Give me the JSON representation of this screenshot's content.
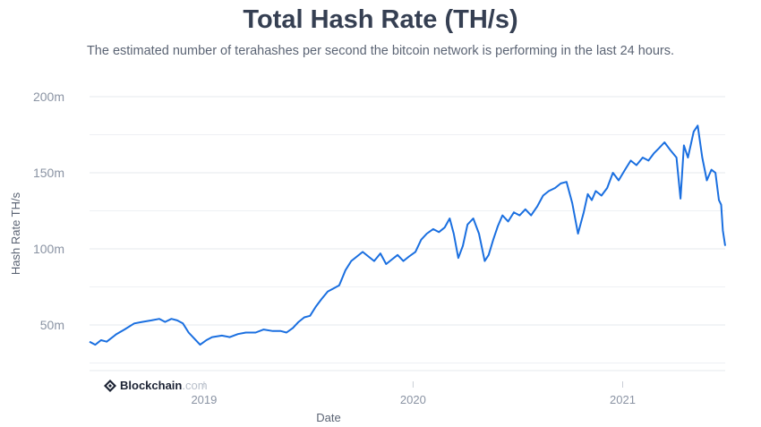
{
  "chart_data": {
    "type": "line",
    "title": "Total Hash Rate (TH/s)",
    "subtitle": "The estimated number of terahashes per second the bitcoin network is performing in the last 24 hours.",
    "xlabel": "Date",
    "ylabel": "Hash Rate TH/s",
    "x_tick_labels": [
      "2019",
      "2020",
      "2021"
    ],
    "y_tick_labels": [
      "50m",
      "100m",
      "150m",
      "200m"
    ],
    "y_ticks": [
      50000000,
      100000000,
      150000000,
      200000000
    ],
    "ylim": [
      20000000,
      200000000
    ],
    "xlim": [
      "2018-06-15",
      "2021-06-29"
    ],
    "grid": "horizontal",
    "line_color": "#1a6fe0",
    "series": [
      {
        "x": [
          "2018-06-15",
          "2018-06-25",
          "2018-07-05",
          "2018-07-15",
          "2018-08-01",
          "2018-08-15",
          "2018-09-01",
          "2018-09-15",
          "2018-10-01",
          "2018-10-15",
          "2018-10-25",
          "2018-11-05",
          "2018-11-15",
          "2018-11-25",
          "2018-12-05",
          "2018-12-15",
          "2018-12-25",
          "2019-01-05",
          "2019-01-15",
          "2019-02-01",
          "2019-02-15",
          "2019-03-01",
          "2019-03-15",
          "2019-04-01",
          "2019-04-15",
          "2019-05-01",
          "2019-05-15",
          "2019-05-25",
          "2019-06-05",
          "2019-06-15",
          "2019-06-25",
          "2019-07-05",
          "2019-07-15",
          "2019-07-25",
          "2019-08-05",
          "2019-08-15",
          "2019-08-25",
          "2019-09-05",
          "2019-09-15",
          "2019-09-25",
          "2019-10-05",
          "2019-10-15",
          "2019-10-25",
          "2019-11-05",
          "2019-11-15",
          "2019-11-25",
          "2019-12-05",
          "2019-12-15",
          "2019-12-25",
          "2020-01-05",
          "2020-01-15",
          "2020-01-25",
          "2020-02-05",
          "2020-02-15",
          "2020-02-25",
          "2020-03-05",
          "2020-03-12",
          "2020-03-20",
          "2020-03-28",
          "2020-04-05",
          "2020-04-15",
          "2020-04-25",
          "2020-05-05",
          "2020-05-12",
          "2020-05-20",
          "2020-05-28",
          "2020-06-05",
          "2020-06-15",
          "2020-06-25",
          "2020-07-05",
          "2020-07-15",
          "2020-07-25",
          "2020-08-05",
          "2020-08-15",
          "2020-08-25",
          "2020-09-05",
          "2020-09-15",
          "2020-09-25",
          "2020-10-05",
          "2020-10-15",
          "2020-10-25",
          "2020-11-01",
          "2020-11-08",
          "2020-11-15",
          "2020-11-25",
          "2020-12-05",
          "2020-12-15",
          "2020-12-25",
          "2021-01-05",
          "2021-01-15",
          "2021-01-25",
          "2021-02-05",
          "2021-02-15",
          "2021-02-25",
          "2021-03-05",
          "2021-03-15",
          "2021-03-25",
          "2021-04-05",
          "2021-04-12",
          "2021-04-18",
          "2021-04-25",
          "2021-05-05",
          "2021-05-12",
          "2021-05-20",
          "2021-05-28",
          "2021-06-05",
          "2021-06-12",
          "2021-06-18",
          "2021-06-22",
          "2021-06-25",
          "2021-06-29"
        ],
        "y": [
          39000000,
          37000000,
          40000000,
          39000000,
          44000000,
          47000000,
          51000000,
          52000000,
          53000000,
          54000000,
          52000000,
          54000000,
          53000000,
          51000000,
          45000000,
          41000000,
          37000000,
          40000000,
          42000000,
          43000000,
          42000000,
          44000000,
          45000000,
          45000000,
          47000000,
          46000000,
          46000000,
          45000000,
          48000000,
          52000000,
          55000000,
          56000000,
          62000000,
          67000000,
          72000000,
          74000000,
          76000000,
          86000000,
          92000000,
          95000000,
          98000000,
          95000000,
          92000000,
          97000000,
          90000000,
          93000000,
          96000000,
          92000000,
          95000000,
          98000000,
          106000000,
          110000000,
          113000000,
          111000000,
          114000000,
          120000000,
          110000000,
          94000000,
          102000000,
          116000000,
          120000000,
          110000000,
          92000000,
          96000000,
          106000000,
          115000000,
          122000000,
          118000000,
          124000000,
          122000000,
          126000000,
          122000000,
          128000000,
          135000000,
          138000000,
          140000000,
          143000000,
          144000000,
          130000000,
          110000000,
          124000000,
          136000000,
          132000000,
          138000000,
          135000000,
          140000000,
          150000000,
          145000000,
          152000000,
          158000000,
          155000000,
          160000000,
          158000000,
          163000000,
          166000000,
          170000000,
          165000000,
          160000000,
          133000000,
          168000000,
          160000000,
          177000000,
          181000000,
          160000000,
          145000000,
          152000000,
          150000000,
          132000000,
          129000000,
          112000000,
          102000000
        ]
      }
    ]
  },
  "brand": {
    "name": "Blockchain",
    "suffix": ".com",
    "icon": "blockchain-logo-icon"
  }
}
